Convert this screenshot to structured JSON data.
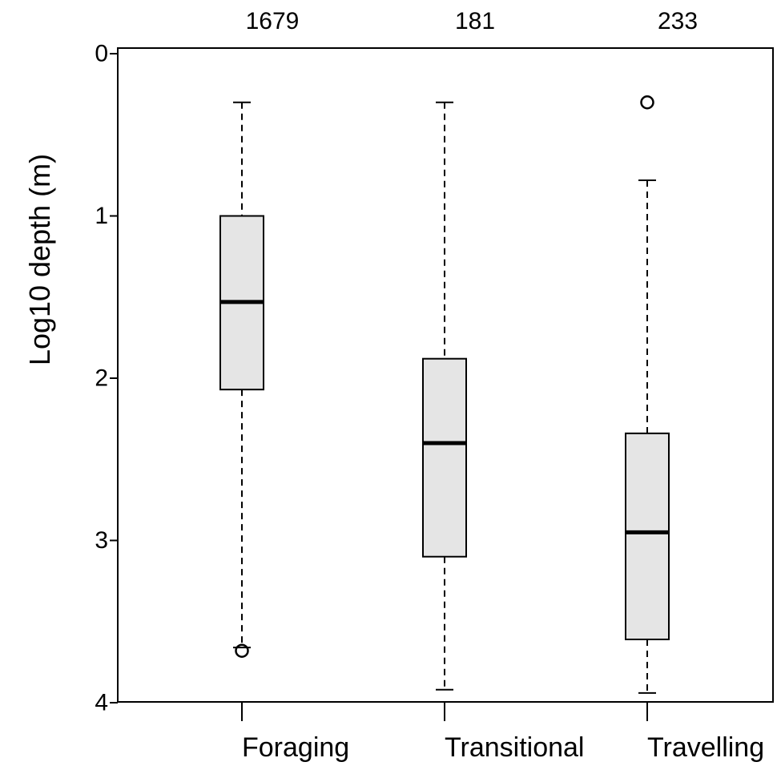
{
  "chart_data": {
    "type": "boxplot",
    "title": "",
    "xlabel": "",
    "ylabel": "Log10 depth (m)",
    "y_reversed": true,
    "ylim": [
      0,
      4
    ],
    "yticks": [
      0,
      1,
      2,
      3,
      4
    ],
    "ytick_labels": [
      "0",
      "1",
      "2",
      "3",
      "4"
    ],
    "grid": false,
    "categories": [
      "Foraging",
      "Transitional",
      "Travelling"
    ],
    "counts": [
      "1679",
      "181",
      "233"
    ],
    "boxes": [
      {
        "category": "Foraging",
        "count": "1679",
        "whisker_low": 0.3,
        "q1": 1.0,
        "median": 1.53,
        "q3": 2.07,
        "whisker_high": 3.66,
        "outliers": [
          3.68
        ]
      },
      {
        "category": "Transitional",
        "count": "181",
        "whisker_low": 0.3,
        "q1": 1.88,
        "median": 2.4,
        "q3": 3.1,
        "whisker_high": 3.92,
        "outliers": []
      },
      {
        "category": "Travelling",
        "count": "233",
        "whisker_low": 0.78,
        "q1": 2.34,
        "median": 2.95,
        "q3": 3.61,
        "whisker_high": 3.94,
        "outliers": [
          0.3
        ]
      }
    ],
    "colors": {
      "box_fill": "#e5e5e5",
      "stroke": "#000000",
      "median": "#000000"
    }
  }
}
